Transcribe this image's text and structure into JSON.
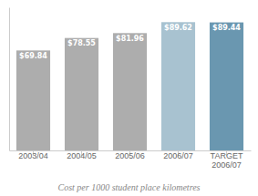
{
  "chart_data": {
    "type": "bar",
    "caption": "Cost per 1000 student place kilometres",
    "categories": [
      "2003/04",
      "2004/05",
      "2005/06",
      "2006/07",
      "TARGET\n2006/07"
    ],
    "values": [
      69.84,
      78.55,
      81.96,
      89.62,
      89.44
    ],
    "value_labels": [
      "$69.84",
      "$78.55",
      "$81.96",
      "$89.62",
      "$89.44"
    ],
    "colors": [
      "#adadad",
      "#adadad",
      "#adadad",
      "#a8c2d0",
      "#6a97b0"
    ],
    "ylim": [
      0,
      100
    ],
    "data_labels": true,
    "tick_labels": "x",
    "grid": false
  }
}
